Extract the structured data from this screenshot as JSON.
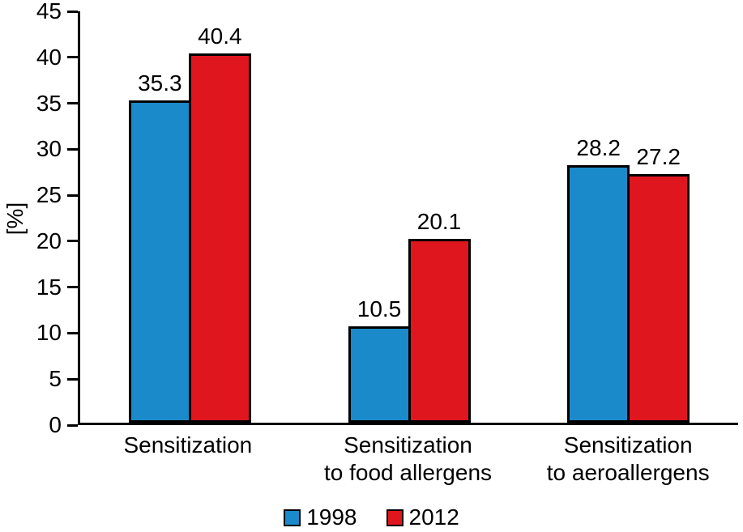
{
  "chart_data": {
    "type": "bar",
    "title": "",
    "categories": [
      "Sensitization",
      "Sensitization to food allergens",
      "Sensitization to aeroallergens"
    ],
    "category_label_lines": [
      [
        "Sensitization"
      ],
      [
        "Sensitization",
        "to food allergens"
      ],
      [
        "Sensitization",
        "to aeroallergens"
      ]
    ],
    "series": [
      {
        "name": "1998",
        "color": "#1b8aca",
        "values": [
          35.3,
          10.5,
          28.2
        ]
      },
      {
        "name": "2012",
        "color": "#e0161f",
        "values": [
          40.4,
          20.1,
          27.2
        ]
      }
    ],
    "xlabel": "",
    "ylabel": "[%]",
    "ylim": [
      0,
      45
    ],
    "ytick_step": 5,
    "grid": false,
    "legend_position": "bottom",
    "value_labels": true,
    "bar_border_color": "#000000"
  }
}
